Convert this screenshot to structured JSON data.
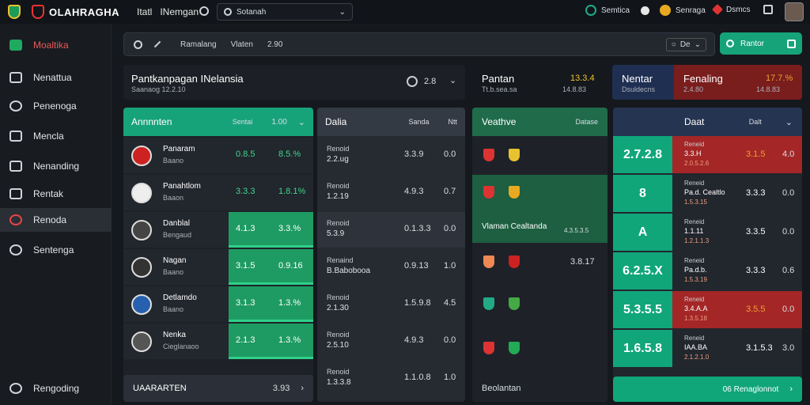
{
  "topbar": {
    "brand": "OLAHRAGHA",
    "nav1": "Itatl",
    "nav2": "INemgan",
    "search_text": "Sotanah",
    "item1": "Semtica",
    "item2": "Senraga",
    "item3": "Dsmcs"
  },
  "sidebar": {
    "items": [
      {
        "label": "Moaltika"
      },
      {
        "label": "Nenattua"
      },
      {
        "label": "Penenoga"
      },
      {
        "label": "Mencla"
      },
      {
        "label": "Nenanding"
      },
      {
        "label": "Rentak"
      },
      {
        "label": "Renoda"
      },
      {
        "label": "Sentenga"
      },
      {
        "label": "Rengoding"
      }
    ]
  },
  "searchbar": {
    "a": "Ramalang",
    "b": "Vlaten",
    "c": "2.90",
    "right": "De",
    "button": "Rantor"
  },
  "header1": {
    "title": "Pantkanpagan INelansia",
    "sub": "Saanaog  12.2.10",
    "value": "2.8"
  },
  "header2": {
    "title": "Pantan",
    "sub": "Tt.b.sea.sa",
    "value": "13.3.4",
    "value2": "14.8.83"
  },
  "header3": {
    "title": "Nentar",
    "sub": "Dsuldecns",
    "title2": "Fenaling",
    "sub2": "2.4.80",
    "value": "17.7.%",
    "value2": "14.8.83"
  },
  "table1": {
    "head": {
      "label": "Annnnten",
      "c1": "Sentai",
      "c2": "1.00"
    },
    "rows": [
      {
        "name": "Panaram",
        "sub": "Baano",
        "v1": "0.8.5",
        "v2": "8.5.%",
        "hl": false
      },
      {
        "name": "Panahtlom",
        "sub": "Baaon",
        "v1": "3.3.3",
        "v2": "1.8.1%",
        "hl": false
      },
      {
        "name": "Danblal",
        "sub": "Bengaud",
        "v1": "4.1.3",
        "v2": "3.3.%",
        "hl": true
      },
      {
        "name": "Nagan",
        "sub": "Baano",
        "v1": "3.1.5",
        "v2": "0.9.16",
        "hl": true
      },
      {
        "name": "Detlamdo",
        "sub": "Baano",
        "v1": "3.1.3",
        "v2": "1.3.%",
        "hl": true
      },
      {
        "name": "Nenka",
        "sub": "Cieglanaoo",
        "v1": "2.1.3",
        "v2": "1.3.%",
        "hl": true
      }
    ],
    "footer": {
      "label": "UAARARTEN",
      "value": "3.93"
    }
  },
  "table2": {
    "head": {
      "label": "Dalia",
      "c1": "Sanda",
      "c2": "Ntt"
    },
    "rows": [
      {
        "name": "Renoid",
        "sub": "2.2.ug",
        "v1": "3.3.9",
        "v2": "0.0"
      },
      {
        "name": "Renoid",
        "sub": "1.2.19",
        "v1": "4.9.3",
        "v2": "0.7"
      },
      {
        "name": "Renoid",
        "sub": "5.3.9",
        "v1": "0.1.3.3",
        "v2": "0.0"
      },
      {
        "name": "Renaind",
        "sub": "B.Babobooa",
        "v1": "0.9.13",
        "v2": "1.0"
      },
      {
        "name": "Renoid",
        "sub": "2.1.30",
        "v1": "1.5.9.8",
        "v2": "4.5"
      },
      {
        "name": "Renoid",
        "sub": "2.5.10",
        "v1": "4.9.3",
        "v2": "0.0"
      },
      {
        "name": "Renoid",
        "sub": "1.3.3.8",
        "v1": "1.1.0.8",
        "v2": "1.0"
      }
    ]
  },
  "table3": {
    "head": {
      "label": "Veathve",
      "c1": "Datase"
    },
    "rows": [
      {
        "text": "",
        "value": ""
      },
      {
        "text": "Vlaman Cealtanda",
        "value": "4.3.5.3.5"
      },
      {
        "text": "",
        "value": "3.8.17"
      },
      {
        "text": "",
        "value": ""
      },
      {
        "text": "",
        "value": ""
      }
    ],
    "footer": "Beolantan"
  },
  "table4": {
    "head": {
      "label": "Daat",
      "c1": "Dalt"
    },
    "rows": [
      {
        "big": "2.7.2.8",
        "name": "Reneid",
        "name2": "3.3.H",
        "sub": "2.0.5.2.6",
        "v1": "3.1.5",
        "v2": "4.0",
        "red": true
      },
      {
        "big": "8",
        "name": "Reneid",
        "name2": "Pa.d. Cealtlo",
        "sub": "1.5.3.15",
        "v1": "3.3.3",
        "v2": "0.0",
        "red": false
      },
      {
        "big": "A",
        "name": "Reneid",
        "name2": "1.1.11",
        "sub": "1.2.1.1.3",
        "v1": "3.3.5",
        "v2": "0.0",
        "red": false
      },
      {
        "big": "6.2.5.X",
        "name": "Reneid",
        "name2": "Pa.d.b.",
        "sub": "1.5.3.19",
        "v1": "3.3.3",
        "v2": "0.6",
        "red": false
      },
      {
        "big": "5.3.5.5",
        "name": "Reneid",
        "name2": "3.4.A.A",
        "sub": "1.3.5.18",
        "v1": "3.5.5",
        "v2": "0.0",
        "red": true
      },
      {
        "big": "1.6.5.8",
        "name": "Reneid",
        "name2": "IAA.BA",
        "sub": "2.1.2.1.0",
        "v1": "3.1.5.3",
        "v2": "3.0",
        "red": false
      }
    ],
    "footer": "06  Renaglonnot"
  }
}
